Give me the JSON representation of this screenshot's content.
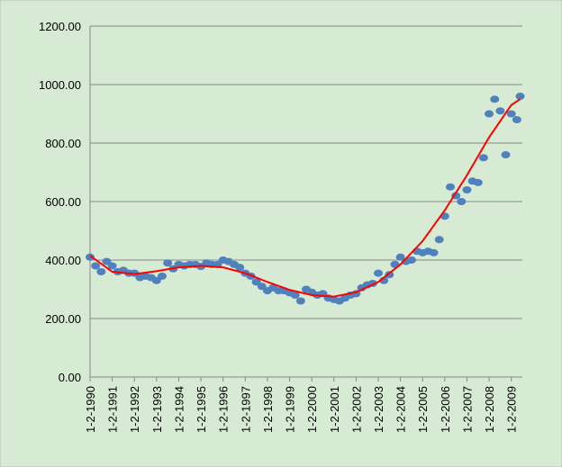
{
  "chart_data": {
    "type": "scatter",
    "x": [
      1990.0,
      1990.25,
      1990.5,
      1990.75,
      1991.0,
      1991.25,
      1991.5,
      1991.75,
      1992.0,
      1992.25,
      1992.5,
      1992.75,
      1993.0,
      1993.25,
      1993.5,
      1993.75,
      1994.0,
      1994.25,
      1994.5,
      1994.75,
      1995.0,
      1995.25,
      1995.5,
      1995.75,
      1996.0,
      1996.25,
      1996.5,
      1996.75,
      1997.0,
      1997.25,
      1997.5,
      1997.75,
      1998.0,
      1998.25,
      1998.5,
      1998.75,
      1999.0,
      1999.25,
      1999.5,
      1999.75,
      2000.0,
      2000.25,
      2000.5,
      2000.75,
      2001.0,
      2001.25,
      2001.5,
      2001.75,
      2002.0,
      2002.25,
      2002.5,
      2002.75,
      2003.0,
      2003.25,
      2003.5,
      2003.75,
      2004.0,
      2004.25,
      2004.5,
      2004.75,
      2005.0,
      2005.25,
      2005.5,
      2005.75,
      2006.0,
      2006.25,
      2006.5,
      2006.75,
      2007.0,
      2007.25,
      2007.5,
      2007.75,
      2008.0,
      2008.25,
      2008.5,
      2008.75,
      2009.0,
      2009.25,
      2009.4
    ],
    "series": [
      {
        "color": "#4f81bd",
        "values": [
          410,
          380,
          360,
          395,
          380,
          360,
          365,
          355,
          355,
          340,
          345,
          340,
          330,
          345,
          390,
          370,
          385,
          380,
          385,
          385,
          378,
          390,
          385,
          385,
          400,
          395,
          385,
          375,
          355,
          345,
          325,
          310,
          295,
          305,
          295,
          295,
          288,
          280,
          260,
          300,
          290,
          280,
          285,
          270,
          265,
          260,
          270,
          280,
          285,
          305,
          315,
          320,
          355,
          330,
          350,
          385,
          410,
          395,
          400,
          430,
          425,
          430,
          425,
          470,
          550,
          650,
          620,
          600,
          640,
          670,
          665,
          750,
          900,
          950,
          910,
          760,
          900,
          880,
          960
        ]
      },
      {
        "type": "line",
        "color": "#ff0000",
        "x": [
          1990,
          1991,
          1992,
          1993,
          1994,
          1995,
          1996,
          1997,
          1998,
          1999,
          2000,
          2001,
          2002,
          2003,
          2004,
          2005,
          2006,
          2007,
          2008,
          2009,
          2009.4
        ],
        "values": [
          415,
          360,
          352,
          362,
          375,
          380,
          375,
          355,
          325,
          298,
          280,
          275,
          290,
          325,
          385,
          465,
          570,
          690,
          820,
          930,
          950
        ]
      }
    ],
    "xlim": [
      1990,
      2009.5
    ],
    "xticks": [
      {
        "value": 1990,
        "label": "1-2-1990"
      },
      {
        "value": 1991,
        "label": "1-2-1991"
      },
      {
        "value": 1992,
        "label": "1-2-1992"
      },
      {
        "value": 1993,
        "label": "1-2-1993"
      },
      {
        "value": 1994,
        "label": "1-2-1994"
      },
      {
        "value": 1995,
        "label": "1-2-1995"
      },
      {
        "value": 1996,
        "label": "1-2-1996"
      },
      {
        "value": 1997,
        "label": "1-2-1997"
      },
      {
        "value": 1998,
        "label": "1-2-1998"
      },
      {
        "value": 1999,
        "label": "1-2-1999"
      },
      {
        "value": 2000,
        "label": "1-2-2000"
      },
      {
        "value": 2001,
        "label": "1-2-2001"
      },
      {
        "value": 2002,
        "label": "1-2-2002"
      },
      {
        "value": 2003,
        "label": "1-2-2003"
      },
      {
        "value": 2004,
        "label": "1-2-2004"
      },
      {
        "value": 2005,
        "label": "1-2-2005"
      },
      {
        "value": 2006,
        "label": "1-2-2006"
      },
      {
        "value": 2007,
        "label": "1-2-2007"
      },
      {
        "value": 2008,
        "label": "1-2-2008"
      },
      {
        "value": 2009,
        "label": "1-2-2009"
      }
    ],
    "ylim": [
      0,
      1200
    ],
    "yticks": [
      {
        "value": 0,
        "label": "0.00"
      },
      {
        "value": 200,
        "label": "200.00"
      },
      {
        "value": 400,
        "label": "400.00"
      },
      {
        "value": 600,
        "label": "600.00"
      },
      {
        "value": 800,
        "label": "800.00"
      },
      {
        "value": 1000,
        "label": "1000.00"
      },
      {
        "value": 1200,
        "label": "1200.00"
      }
    ],
    "grid": true
  }
}
